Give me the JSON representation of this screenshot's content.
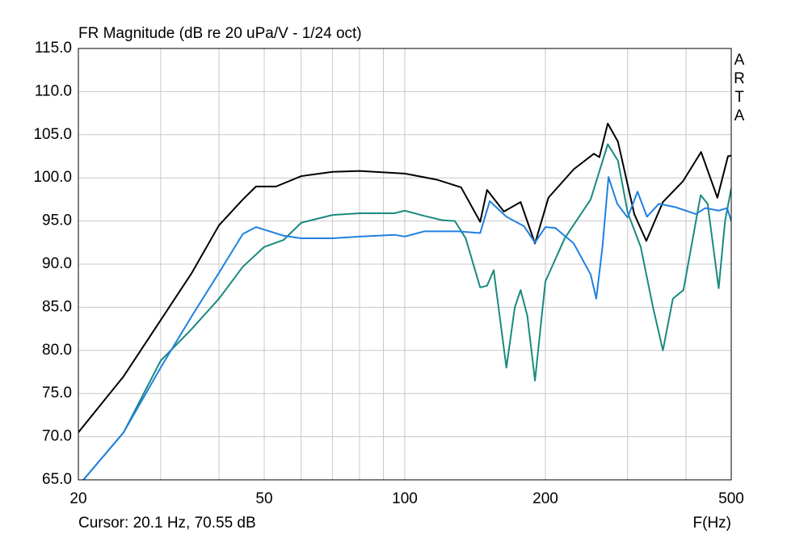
{
  "chart_data": {
    "type": "line",
    "title": "FR Magnitude (dB re 20 uPa/V - 1/24 oct)",
    "watermark": "ARTA",
    "cursor": "Cursor: 20.1 Hz, 70.55 dB",
    "x_label": "F(Hz)",
    "xscale": "log",
    "grid": true,
    "xlim": [
      20,
      500
    ],
    "ylim": [
      65,
      115
    ],
    "xticks": [
      20,
      50,
      100,
      200,
      500
    ],
    "xminor": [
      30,
      40,
      60,
      70,
      80,
      90,
      300,
      400
    ],
    "yticks": [
      {
        "value": 65,
        "label": "65.0"
      },
      {
        "value": 70,
        "label": "70.0"
      },
      {
        "value": 75,
        "label": "75.0"
      },
      {
        "value": 80,
        "label": "80.0"
      },
      {
        "value": 85,
        "label": "85.0"
      },
      {
        "value": 90,
        "label": "90.0"
      },
      {
        "value": 95,
        "label": "95.0"
      },
      {
        "value": 100,
        "label": "100.0"
      },
      {
        "value": 105,
        "label": "105.0"
      },
      {
        "value": 110,
        "label": "110.0"
      },
      {
        "value": 115,
        "label": "115.0"
      }
    ],
    "series": [
      {
        "color": "#000000",
        "x": [
          20,
          25,
          30,
          35,
          40,
          45,
          48,
          53,
          60,
          70,
          80,
          100,
          117,
          132,
          145,
          150,
          163,
          177,
          190,
          203,
          230,
          254,
          261,
          272,
          286,
          310,
          329,
          357,
          394,
          431,
          467,
          492,
          500
        ],
        "values": [
          70.5,
          77,
          83.5,
          89,
          94.5,
          97.5,
          99,
          99,
          100.2,
          100.7,
          100.8,
          100.5,
          99.8,
          98.9,
          94.9,
          98.6,
          96.1,
          97.2,
          92.4,
          97.7,
          101,
          102.8,
          102.4,
          106.3,
          104.2,
          95.8,
          92.7,
          97.2,
          99.6,
          103,
          97.7,
          102.5,
          102.6
        ]
      },
      {
        "color": "#1a8a7e",
        "x": [
          20.5,
          25,
          30,
          35,
          40,
          45,
          50,
          55,
          60,
          70,
          80,
          95,
          100,
          110,
          120,
          128,
          135,
          145,
          150,
          155,
          165,
          172,
          177,
          183,
          190,
          200,
          220,
          250,
          272,
          286,
          300,
          320,
          340,
          357,
          375,
          395,
          430,
          445,
          470,
          485,
          500
        ],
        "values": [
          65,
          70.5,
          78.8,
          82.5,
          86,
          89.7,
          92,
          92.8,
          94.8,
          95.7,
          95.9,
          95.9,
          96.2,
          95.6,
          95.1,
          95,
          93,
          87.3,
          87.5,
          89.3,
          78,
          85,
          87,
          84,
          76.5,
          88,
          93,
          97.5,
          103.9,
          102,
          96,
          92,
          85,
          80,
          86,
          87,
          98,
          97,
          87.2,
          95,
          98.8
        ]
      },
      {
        "color": "#2080e0",
        "x": [
          20.5,
          25,
          30,
          35,
          40,
          45,
          48,
          55,
          60,
          70,
          80,
          95,
          100,
          110,
          130,
          145,
          152,
          165,
          180,
          190,
          200,
          210,
          230,
          250,
          257,
          265,
          273,
          285,
          300,
          315,
          330,
          350,
          380,
          400,
          420,
          440,
          470,
          490,
          500
        ],
        "values": [
          65,
          70.5,
          78,
          84,
          89,
          93.5,
          94.3,
          93.3,
          93,
          93,
          93.2,
          93.4,
          93.2,
          93.8,
          93.8,
          93.6,
          97.3,
          95.5,
          94.4,
          92.5,
          94.3,
          94.2,
          92.4,
          88.8,
          86,
          92,
          100.1,
          97,
          95.4,
          98.4,
          95.5,
          97,
          96.6,
          96.2,
          95.8,
          96.5,
          96.2,
          96.5,
          95
        ]
      }
    ]
  }
}
